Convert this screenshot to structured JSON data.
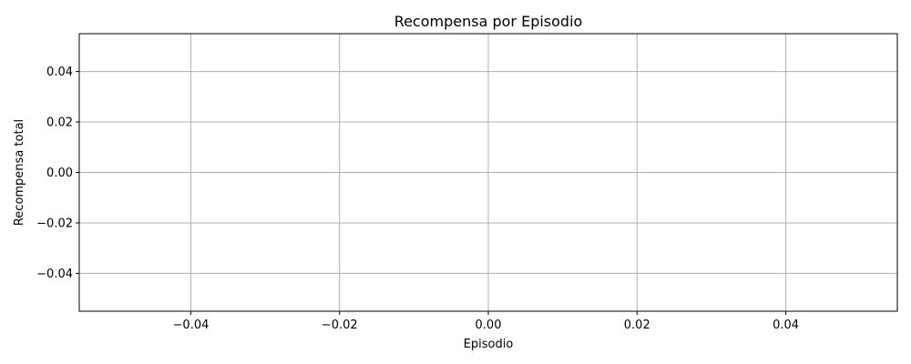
{
  "chart_data": {
    "type": "line",
    "title": "Recompensa por Episodio",
    "xlabel": "Episodio",
    "ylabel": "Recompensa total",
    "x": [],
    "series": [
      {
        "values": []
      }
    ],
    "xlim": [
      -0.055,
      0.055
    ],
    "ylim": [
      -0.055,
      0.055
    ],
    "xticks": [
      -0.04,
      -0.02,
      0.0,
      0.02,
      0.04
    ],
    "xtick_labels": [
      "−0.04",
      "−0.02",
      "0.00",
      "0.02",
      "0.04"
    ],
    "yticks": [
      -0.04,
      -0.02,
      0.0,
      0.02,
      0.04
    ],
    "ytick_labels": [
      "−0.04",
      "−0.02",
      "0.00",
      "0.02",
      "0.04"
    ],
    "grid": true
  }
}
